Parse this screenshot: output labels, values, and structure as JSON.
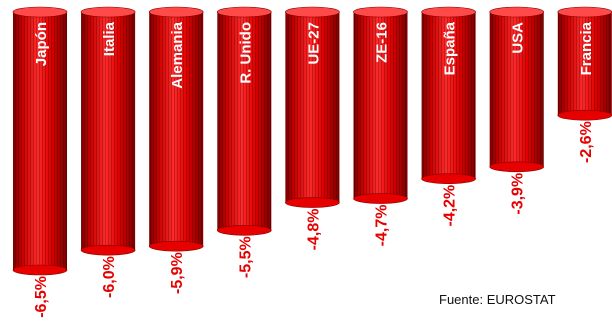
{
  "colors": {
    "bar_main": "#e60000",
    "bar_dark": "#8a0000",
    "bar_light": "#ff4a4a",
    "value_text": "#e60000",
    "category_text": "#ffffff"
  },
  "chart_data": {
    "type": "bar",
    "orientation": "vertical-hanging",
    "style": "3d-cylinder",
    "categories": [
      "Japón",
      "Italia",
      "Alemania",
      "R. Unido",
      "UE-27",
      "ZE-16",
      "España",
      "USA",
      "Francia"
    ],
    "values": [
      -6.5,
      -6.0,
      -5.9,
      -5.5,
      -4.8,
      -4.7,
      -4.2,
      -3.9,
      -2.6
    ],
    "value_labels": [
      "-6,5%",
      "-6,0%",
      "-5,9%",
      "-5,5%",
      "-4,8%",
      "-4,7%",
      "-4,2%",
      "-3,9%",
      "-2,6%"
    ],
    "ylim": [
      -6.5,
      0
    ],
    "grid": false,
    "legend": "none"
  },
  "source_note": "Fuente: EUROSTAT"
}
